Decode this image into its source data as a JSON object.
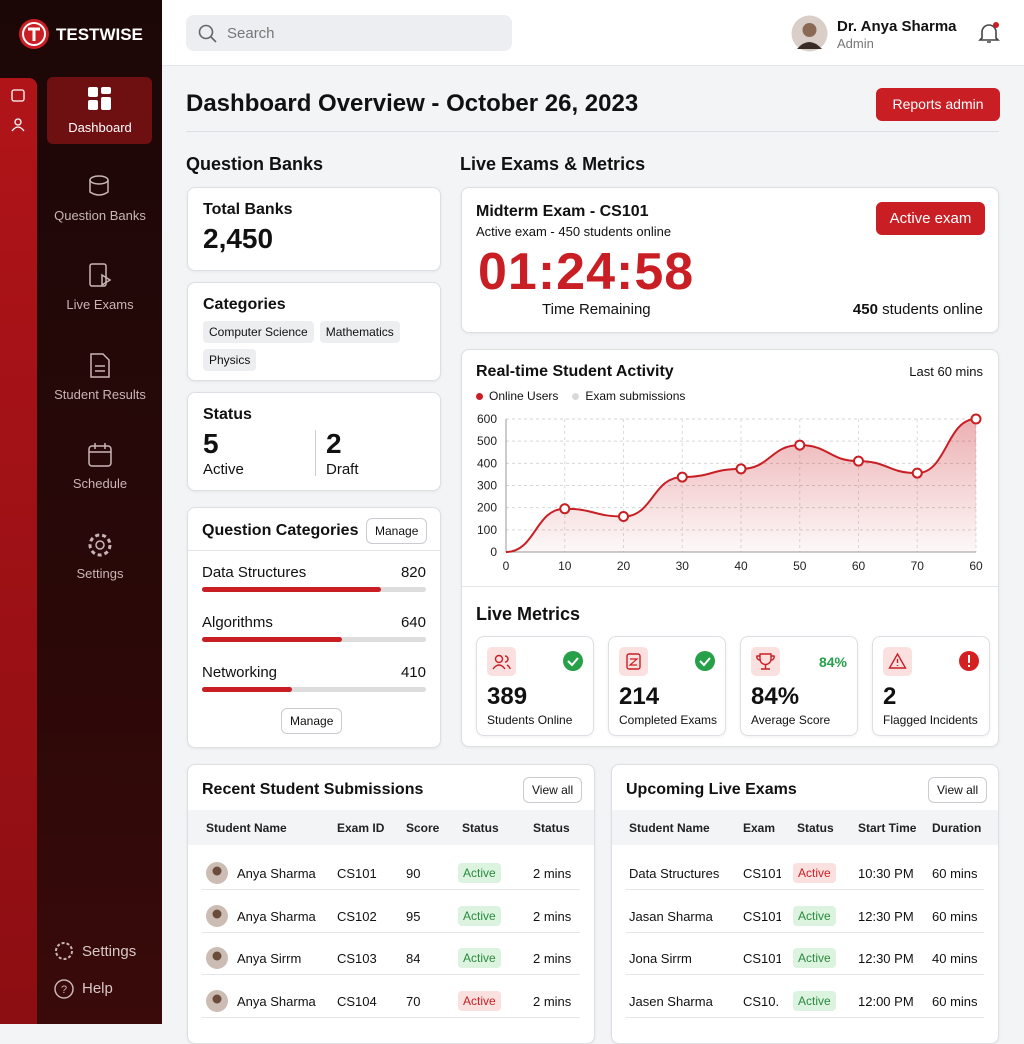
{
  "brand": "TESTWISE",
  "search_placeholder": "Search",
  "user": {
    "name": "Dr. Anya Sharma",
    "role": "Admin"
  },
  "nav": [
    "Dashboard",
    "Question Banks",
    "Live Exams",
    "Student Results",
    "Schedule",
    "Settings"
  ],
  "footer_nav": [
    "Settings",
    "Help"
  ],
  "header": {
    "title": "Dashboard Overview - October 26, 2023",
    "button": "Reports admin"
  },
  "question_banks": {
    "title": "Question Banks",
    "total_label": "Total Banks",
    "total": "2,450",
    "categories_title": "Categories",
    "tags": [
      "Computer Science",
      "Mathematics",
      "Physics"
    ],
    "status_title": "Status",
    "status": [
      {
        "value": 5,
        "label": "Active"
      },
      {
        "value": 2,
        "label": "Draft"
      }
    ]
  },
  "question_categories": {
    "title": "Question Categories",
    "button": "Manage",
    "items": [
      {
        "name": "Data Structures",
        "count": 820
      },
      {
        "name": "Algorithms",
        "count": 640
      },
      {
        "name": "Networking",
        "count": 410
      }
    ],
    "footer_button": "Manage"
  },
  "live_exams_title": "Live Exams & Metrics",
  "exam": {
    "title": "Midterm Exam - CS101",
    "subtitle": "Active exam - 450 students online",
    "badge": "Active exam",
    "timer": "01:24:58",
    "timer_label": "Time Remaining",
    "students": 450,
    "students_label": "students online"
  },
  "chart_data": {
    "type": "line",
    "title": "Real-time Student Activity",
    "subtitle": "Last 60 mins",
    "categories": [
      "0",
      "10",
      "20",
      "30",
      "40",
      "50",
      "60",
      "70",
      "60"
    ],
    "series": [
      {
        "name": "Online Users",
        "color": "#c81e24",
        "values": [
          0,
          195,
          160,
          338,
          375,
          482,
          410,
          356,
          600
        ]
      },
      {
        "name": "Exam submissions",
        "color": "#d9d9d9"
      }
    ],
    "ylim": [
      0,
      600
    ],
    "yticks": [
      0,
      100,
      200,
      300,
      400,
      500,
      600
    ],
    "grid": true
  },
  "live_metrics": {
    "title": "Live Metrics",
    "cards": [
      {
        "value": 389,
        "label": "Students Online"
      },
      {
        "value": 214,
        "label": "Completed Exams"
      },
      {
        "value": "84%",
        "label": "Average Score",
        "badge": "84%"
      },
      {
        "value": 2,
        "label": "Flagged Incidents"
      }
    ]
  },
  "submissions": {
    "title": "Recent Student Submissions",
    "button": "View all",
    "columns": [
      "Student Name",
      "Exam ID",
      "Score",
      "Status",
      "Status"
    ],
    "rows": [
      [
        "Anya Sharma",
        "CS101",
        90,
        "Active",
        "2 mins"
      ],
      [
        "Anya Sharma",
        "CS102",
        95,
        "Active",
        "2 mins"
      ],
      [
        "Anya Sirrm",
        "CS103",
        84,
        "Active",
        "2 mins"
      ],
      [
        "Anya Sharma",
        "CS104",
        70,
        "Active",
        "2 mins"
      ]
    ]
  },
  "upcoming": {
    "title": "Upcoming Live Exams",
    "button": "View all",
    "columns": [
      "Student Name",
      "Exam",
      "Status",
      "Start Time",
      "Duration"
    ],
    "rows": [
      [
        "Data Structures",
        "CS101",
        "Active",
        "10:30 PM",
        "60 mins"
      ],
      [
        "Jasan Sharma",
        "CS101",
        "Active",
        "12:30 PM",
        "60 mins"
      ],
      [
        "Jona Sirrm",
        "CS101",
        "Active",
        "12:30 PM",
        "40 mins"
      ],
      [
        "Jasen Sharma",
        "CS10.",
        "Active",
        "12:00 PM",
        "60 mins"
      ]
    ]
  }
}
